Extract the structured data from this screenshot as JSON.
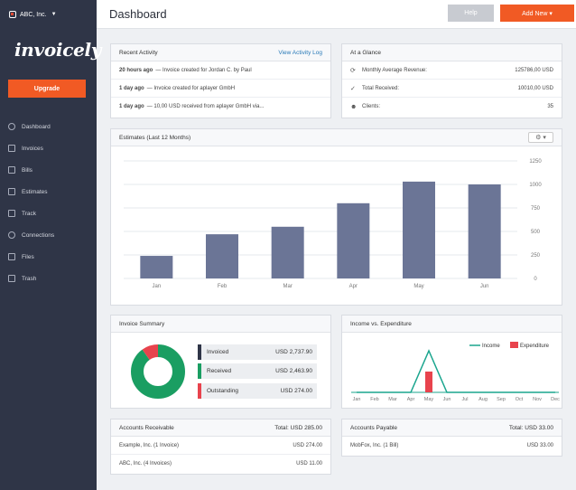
{
  "sidebar": {
    "company": "ABC, Inc.",
    "brand": "invoicely",
    "upgrade_label": "Upgrade",
    "items": [
      {
        "label": "Dashboard"
      },
      {
        "label": "Invoices"
      },
      {
        "label": "Bills"
      },
      {
        "label": "Estimates"
      },
      {
        "label": "Track"
      },
      {
        "label": "Connections"
      },
      {
        "label": "Files"
      },
      {
        "label": "Trash"
      }
    ]
  },
  "header": {
    "title": "Dashboard",
    "help_label": "Help",
    "add_new_label": "Add New"
  },
  "recent_activity": {
    "title": "Recent Activity",
    "link": "View Activity Log",
    "items": [
      {
        "time": "20 hours ago",
        "text": "— Invoice created for Jordan C. by Paul"
      },
      {
        "time": "1 day ago",
        "text": "— Invoice created for aplayer GmbH"
      },
      {
        "time": "1 day ago",
        "text": "— 10,00 USD received from aplayer GmbH via..."
      }
    ]
  },
  "at_a_glance": {
    "title": "At a Glance",
    "items": [
      {
        "icon": "refresh-icon",
        "label": "Monthly Average Revenue:",
        "value": "125786,00 USD"
      },
      {
        "icon": "check-icon",
        "label": "Total Received:",
        "value": "10010,00 USD"
      },
      {
        "icon": "users-icon",
        "label": "Clients:",
        "value": "35"
      }
    ]
  },
  "estimates": {
    "title": "Estimates (Last 12 Months)"
  },
  "chart_data": [
    {
      "type": "bar",
      "title": "Estimates (Last 12 Months)",
      "categories": [
        "Jan",
        "Feb",
        "Mar",
        "Apr",
        "May",
        "Jun"
      ],
      "values": [
        240,
        470,
        550,
        800,
        1030,
        1000
      ],
      "ylim": [
        0,
        1250
      ],
      "yticks": [
        "0",
        "250",
        "500",
        "750",
        "1000",
        "1250"
      ],
      "color": "#6b7596",
      "grid": true
    },
    {
      "type": "pie",
      "title": "Invoice Summary",
      "labels": [
        "Received",
        "Outstanding"
      ],
      "values": [
        2463.9,
        274.0
      ],
      "colors": [
        "#1a9e62",
        "#e8434d"
      ]
    },
    {
      "type": "line",
      "title": "Income vs. Expenditure",
      "categories": [
        "Jan",
        "Feb",
        "Mar",
        "Apr",
        "May",
        "Jun",
        "Jul",
        "Aug",
        "Sep",
        "Oct",
        "Nov",
        "Dec"
      ],
      "series": [
        {
          "name": "Income",
          "type": "line",
          "values": [
            0,
            0,
            0,
            0,
            1,
            0,
            0,
            0,
            0,
            0,
            0,
            0
          ],
          "color": "#1aa58e"
        },
        {
          "name": "Expenditure",
          "type": "bar",
          "values": [
            0,
            0,
            0,
            0,
            0.5,
            0,
            0,
            0,
            0,
            0,
            0,
            0
          ],
          "color": "#e8434d"
        }
      ]
    }
  ],
  "invoice_summary": {
    "title": "Invoice Summary",
    "items": [
      {
        "label": "Invoiced",
        "amount": "USD 2,737.90",
        "color": "#2f3547"
      },
      {
        "label": "Received",
        "amount": "USD 2,463.90",
        "color": "#1a9e62"
      },
      {
        "label": "Outstanding",
        "amount": "USD 274.00",
        "color": "#e8434d"
      }
    ]
  },
  "income_expenditure": {
    "title": "Income vs. Expenditure",
    "legend_income": "Income",
    "legend_expenditure": "Expenditure"
  },
  "accounts_receivable": {
    "title": "Accounts Receivable",
    "total": "Total: USD 285.00",
    "rows": [
      {
        "name": "Example, Inc. (1 Invoice)",
        "amount": "USD 274.00"
      },
      {
        "name": "ABC, Inc. (4 Invoices)",
        "amount": "USD 11.00"
      }
    ]
  },
  "accounts_payable": {
    "title": "Accounts Payable",
    "total": "Total: USD 33.00",
    "rows": [
      {
        "name": "MobFox, Inc. (1 Bill)",
        "amount": "USD 33.00"
      }
    ]
  }
}
